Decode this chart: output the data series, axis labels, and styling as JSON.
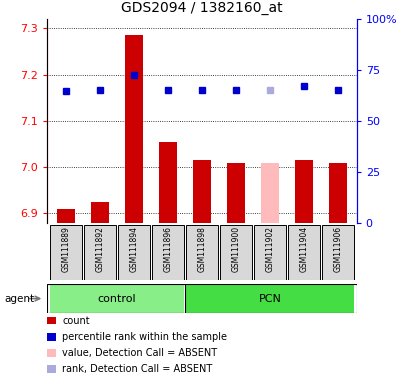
{
  "title": "GDS2094 / 1382160_at",
  "samples": [
    "GSM111889",
    "GSM111892",
    "GSM111894",
    "GSM111896",
    "GSM111898",
    "GSM111900",
    "GSM111902",
    "GSM111904",
    "GSM111906"
  ],
  "bar_values": [
    6.91,
    6.925,
    7.285,
    7.055,
    7.015,
    7.01,
    7.01,
    7.015,
    7.01
  ],
  "bar_colors": [
    "#cc0000",
    "#cc0000",
    "#cc0000",
    "#cc0000",
    "#cc0000",
    "#cc0000",
    "#ffbbbb",
    "#cc0000",
    "#cc0000"
  ],
  "rank_values": [
    7.165,
    7.167,
    7.2,
    7.167,
    7.167,
    7.167,
    7.167,
    7.175,
    7.167
  ],
  "rank_colors": [
    "#0000cc",
    "#0000cc",
    "#0000cc",
    "#0000cc",
    "#0000cc",
    "#0000cc",
    "#aaaadd",
    "#0000cc",
    "#0000cc"
  ],
  "ylim_left": [
    6.88,
    7.32
  ],
  "ylim_right": [
    0,
    100
  ],
  "yticks_left": [
    6.9,
    7.0,
    7.1,
    7.2,
    7.3
  ],
  "yticks_right": [
    0,
    25,
    50,
    75,
    100
  ],
  "ytick_labels_right": [
    "0",
    "25",
    "50",
    "75",
    "100%"
  ],
  "control_color": "#88ee88",
  "pcn_color": "#44dd44",
  "agent_label": "agent",
  "legend": [
    {
      "label": "count",
      "color": "#cc0000"
    },
    {
      "label": "percentile rank within the sample",
      "color": "#0000cc"
    },
    {
      "label": "value, Detection Call = ABSENT",
      "color": "#ffbbbb"
    },
    {
      "label": "rank, Detection Call = ABSENT",
      "color": "#aaaadd"
    }
  ],
  "bar_bottom": 6.88,
  "bar_width": 0.55,
  "rank_marker_size": 5,
  "fig_width": 4.1,
  "fig_height": 3.84,
  "fig_dpi": 100
}
